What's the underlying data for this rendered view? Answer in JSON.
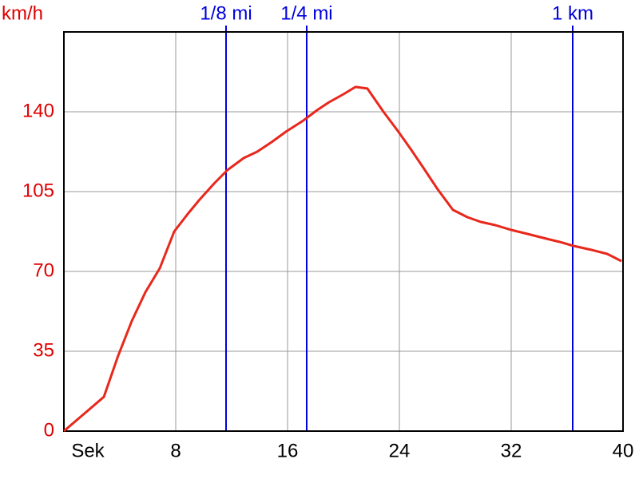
{
  "chart_data": {
    "type": "line",
    "y_label": "km/h",
    "x": [
      0,
      2.86,
      3.89,
      4.86,
      5.83,
      6.86,
      7.89,
      8.86,
      9.71,
      10.74,
      11.71,
      12.86,
      13.83,
      14.86,
      15.89,
      17.14,
      18.11,
      18.97,
      20,
      20.86,
      21.71,
      22.86,
      23.89,
      24.86,
      25.71,
      26.74,
      27.83,
      28.86,
      29.83,
      30.86,
      32,
      33.14,
      34.29,
      35.43,
      36.46,
      37.71,
      38.86,
      39.89
    ],
    "series": [
      {
        "color": "#e8281c",
        "values": [
          0,
          15,
          33.2,
          48.3,
          60.9,
          71.4,
          87.5,
          95.2,
          101.5,
          108.5,
          114.5,
          119.7,
          122.5,
          126.7,
          131.3,
          136.2,
          140.7,
          144.2,
          147.7,
          150.9,
          150.2,
          140,
          131.6,
          123.2,
          115.5,
          106,
          97,
          93.8,
          91.7,
          90.3,
          88.2,
          86.5,
          84.7,
          83,
          81.2,
          79.5,
          77.7,
          74.5
        ]
      }
    ],
    "xlim": [
      0,
      40
    ],
    "xticks": [
      {
        "value": 0,
        "label": "Sek"
      },
      8,
      16,
      24,
      32,
      40
    ],
    "ylim": [
      0,
      175
    ],
    "yticks": [
      0,
      35,
      70,
      105,
      140
    ],
    "grid": true,
    "axis_label_color": "#e00000",
    "markers": [
      {
        "label": "1/8 mi",
        "x": 11.6
      },
      {
        "label": "1/4 mi",
        "x": 17.37
      },
      {
        "label": "1 km",
        "x": 36.4
      }
    ],
    "marker_color": "#0000dd"
  }
}
